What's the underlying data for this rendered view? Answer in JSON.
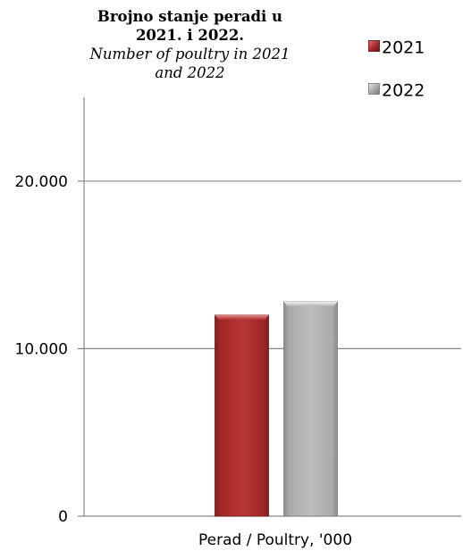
{
  "chart_data": {
    "type": "bar",
    "title": "Brojno stanje peradi u 2021. i 2022.",
    "subtitle": "Number of poultry in 2021 and 2022",
    "categories": [
      "Perad / Poultry, '000"
    ],
    "series": [
      {
        "name": "2021",
        "values": [
          12000
        ],
        "color": "#a52a2a"
      },
      {
        "name": "2022",
        "values": [
          12800
        ],
        "color": "#a6a6a6"
      }
    ],
    "y_ticks": [
      0,
      10000,
      20000
    ],
    "y_tick_labels": [
      "0",
      "10.000",
      "20.000"
    ],
    "ylim": [
      0,
      25000
    ],
    "grid": true,
    "legend_position": "top-right"
  }
}
